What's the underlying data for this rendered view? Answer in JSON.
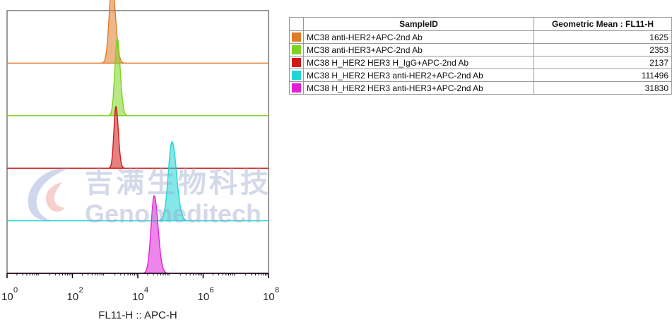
{
  "chart_data": {
    "type": "histogram",
    "xlabel": "FL11-H :: APC-H",
    "xscale": "log",
    "xlim": [
      1,
      100000000
    ],
    "xticks": [
      {
        "base": "10",
        "exp": "0",
        "value": 1
      },
      {
        "base": "10",
        "exp": "2",
        "value": 100
      },
      {
        "base": "10",
        "exp": "4",
        "value": 10000
      },
      {
        "base": "10",
        "exp": "6",
        "value": 1000000
      },
      {
        "base": "10",
        "exp": "8",
        "value": 100000000
      }
    ],
    "layout": "staggered-offset",
    "series": [
      {
        "name": "MC38 anti-HER2+APC-2nd Ab",
        "color": "#e07b28",
        "peak": 1625
      },
      {
        "name": "MC38 anti-HER3+APC-2nd Ab",
        "color": "#7dd321",
        "peak": 2353
      },
      {
        "name": "MC38 H_HER2 HER3 H_IgG+APC-2nd Ab",
        "color": "#d21a1a",
        "peak": 2137
      },
      {
        "name": "MC38 H_HER2 HER3 anti-HER2+APC-2nd Ab",
        "color": "#1fd6d6",
        "peak": 111496
      },
      {
        "name": "MC38 H_HER2 HER3 anti-HER3+APC-2nd Ab",
        "color": "#e020d8",
        "peak": 31830
      }
    ]
  },
  "table": {
    "headers": [
      "SampleID",
      "Geometric Mean : FL11-H"
    ],
    "rows": [
      {
        "name": "MC38 anti-HER2+APC-2nd Ab",
        "color": "#e07b28",
        "value": "1625"
      },
      {
        "name": "MC38 anti-HER3+APC-2nd Ab",
        "color": "#7dd321",
        "value": "2353"
      },
      {
        "name": "MC38 H_HER2 HER3 H_IgG+APC-2nd Ab",
        "color": "#d21a1a",
        "value": "2137"
      },
      {
        "name": "MC38 H_HER2 HER3 anti-HER2+APC-2nd Ab",
        "color": "#1fd6d6",
        "value": "111496"
      },
      {
        "name": "MC38 H_HER2 HER3 anti-HER3+APC-2nd Ab",
        "color": "#e020d8",
        "value": "31830"
      }
    ]
  },
  "watermark": {
    "cn": "吉满生物科技",
    "en": "Genomeditech"
  }
}
